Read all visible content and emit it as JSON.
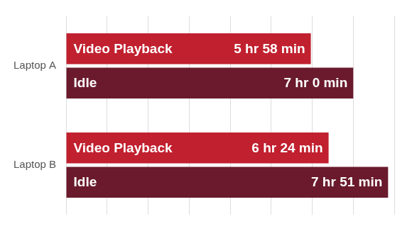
{
  "chart_data": {
    "type": "bar",
    "orientation": "horizontal",
    "categories": [
      "Laptop A",
      "Laptop B"
    ],
    "series": [
      {
        "name": "Video Playback",
        "color": "#c1202f",
        "values": [
          358,
          384
        ],
        "value_labels": [
          "5 hr 58 min",
          "6 hr 24 min"
        ]
      },
      {
        "name": "Idle",
        "color": "#6a1a2c",
        "values": [
          420,
          471
        ],
        "value_labels": [
          "7 hr 0 min",
          "7 hr 51 min"
        ]
      }
    ],
    "xlim": [
      0,
      480
    ],
    "xticks": [
      0,
      60,
      120,
      180,
      240,
      300,
      360,
      420,
      480
    ],
    "grid": true,
    "data_labels": true,
    "tick_labels": "y"
  }
}
